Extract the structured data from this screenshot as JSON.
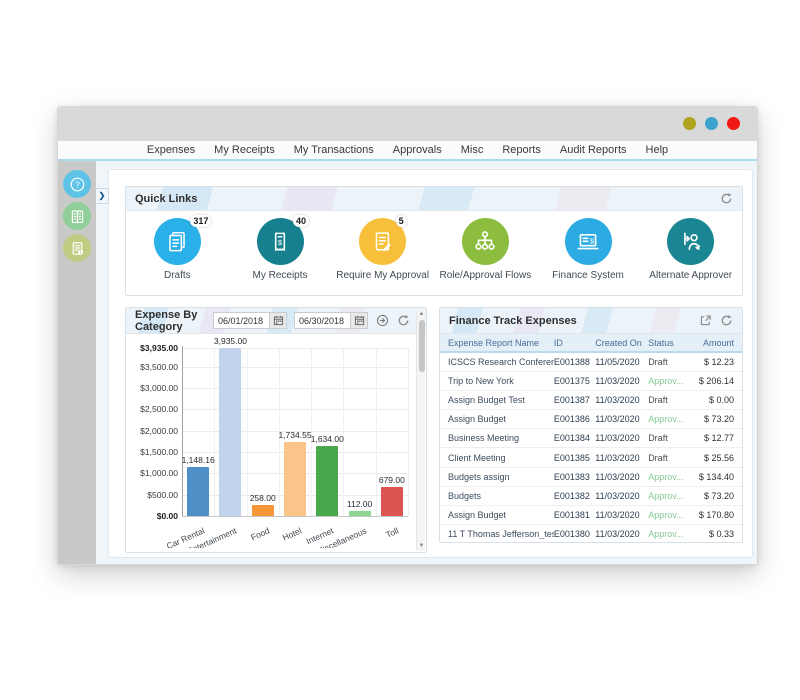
{
  "window": {
    "titlebar_buttons": [
      {
        "name": "yellow-button",
        "color": "#aea41f"
      },
      {
        "name": "blue-button",
        "color": "#3ba3cd"
      },
      {
        "name": "red-button",
        "color": "#f21a14"
      }
    ],
    "menu": {
      "items": [
        "Expenses",
        "My Receipts",
        "My Transactions",
        "Approvals",
        "Misc",
        "Reports",
        "Audit Reports",
        "Help"
      ]
    }
  },
  "sidebar": {
    "items": [
      {
        "icon": "help-icon",
        "color": "#5fc3e7"
      },
      {
        "icon": "ledger-icon",
        "color": "#90cf99"
      },
      {
        "icon": "document-info-icon",
        "color": "#c2cb82"
      }
    ]
  },
  "quick_links": {
    "title": "Quick Links",
    "items": [
      {
        "label": "Drafts",
        "badge": "317",
        "color": "#29b0e8",
        "icon": "drafts-icon"
      },
      {
        "label": "My Receipts",
        "badge": "40",
        "color": "#17808f",
        "icon": "receipt-icon"
      },
      {
        "label": "Require My Approval",
        "badge": "5",
        "color": "#f8c03a",
        "icon": "approval-doc-icon"
      },
      {
        "label": "Role/Approval Flows",
        "badge": "",
        "color": "#8cbd3f",
        "icon": "approval-flow-icon"
      },
      {
        "label": "Finance System",
        "badge": "",
        "color": "#2cabe3",
        "icon": "finance-laptop-icon"
      },
      {
        "label": "Alternate Approver",
        "badge": "",
        "color": "#1a8593",
        "icon": "alternate-approver-icon"
      }
    ]
  },
  "expense_panel": {
    "title": "Expense By Category",
    "date_from": "06/01/2018",
    "date_to": "06/30/2018"
  },
  "chart_data": {
    "type": "bar",
    "title": "Expense By Category",
    "categories": [
      "Car Rental",
      "Entertainment",
      "Food",
      "Hotel",
      "Internet",
      "Miscellaneous",
      "Toll"
    ],
    "values": [
      1148.16,
      3935.0,
      258.0,
      1734.55,
      1634.0,
      112.0,
      679.0
    ],
    "value_labels": [
      "1,148.16",
      "3,935.00",
      "258.00",
      "1,734.55",
      "1,634.00",
      "112.00",
      "679.00"
    ],
    "bar_colors": [
      "#4e90c6",
      "#c1d3ec",
      "#f8973a",
      "#fbc488",
      "#49a84c",
      "#90d494",
      "#da5452"
    ],
    "y_ticks": [
      "$3,935.00",
      "$3,500.00",
      "$3,000.00",
      "$2,500.00",
      "$2,000.00",
      "$1,500.00",
      "$1,000.00",
      "$500.00",
      "$0.00"
    ],
    "y_tick_values": [
      3935,
      3500,
      3000,
      2500,
      2000,
      1500,
      1000,
      500,
      0
    ],
    "ylim": [
      0,
      3935
    ],
    "xlabel": "",
    "ylabel": "",
    "grid": true,
    "legend": "none"
  },
  "finance_panel": {
    "title": "Finance Track Expenses",
    "columns": [
      "Expense Report Name",
      "ID",
      "Created On",
      "Status",
      "Amount"
    ],
    "rows": [
      {
        "name": "ICSCS Research Conferen...",
        "id": "E001388",
        "created": "11/05/2020",
        "status": "Draft",
        "amount": "$ 12.23"
      },
      {
        "name": "Trip to New York",
        "id": "E001375",
        "created": "11/03/2020",
        "status": "Approv...",
        "amount": "$ 206.14"
      },
      {
        "name": "Assign Budget Test",
        "id": "E001387",
        "created": "11/03/2020",
        "status": "Draft",
        "amount": "$ 0.00"
      },
      {
        "name": "Assign Budget",
        "id": "E001386",
        "created": "11/03/2020",
        "status": "Approv...",
        "amount": "$ 73.20"
      },
      {
        "name": "Business Meeting",
        "id": "E001384",
        "created": "11/03/2020",
        "status": "Draft",
        "amount": "$ 12.77"
      },
      {
        "name": "Client Meeting",
        "id": "E001385",
        "created": "11/03/2020",
        "status": "Draft",
        "amount": "$ 25.56"
      },
      {
        "name": "Budgets assign",
        "id": "E001383",
        "created": "11/03/2020",
        "status": "Approv...",
        "amount": "$ 134.40"
      },
      {
        "name": "Budgets",
        "id": "E001382",
        "created": "11/03/2020",
        "status": "Approv...",
        "amount": "$ 73.20"
      },
      {
        "name": "Assign Budget",
        "id": "E001381",
        "created": "11/03/2020",
        "status": "Approv...",
        "amount": "$ 170.80"
      },
      {
        "name": "11 T Thomas Jefferson_tes...",
        "id": "E001380",
        "created": "11/03/2020",
        "status": "Approv...",
        "amount": "$ 0.33"
      }
    ],
    "status_colors": {
      "draft": "#4b4b4b",
      "approved": "#86c995"
    }
  }
}
